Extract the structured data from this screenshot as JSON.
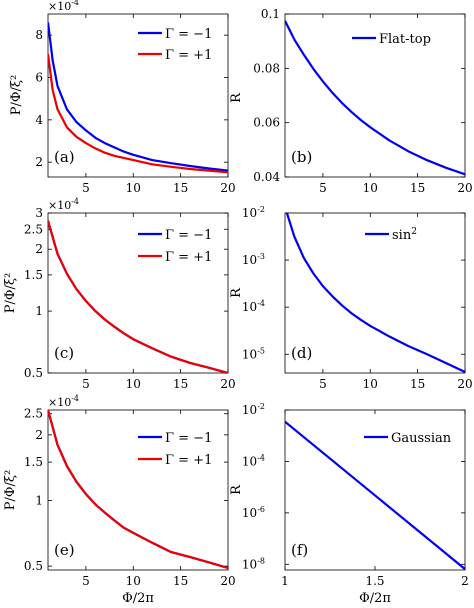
{
  "colors": {
    "blue": "#0000ee",
    "red": "#ee0000",
    "axis": "#000000"
  },
  "chart_data": [
    {
      "panel_label": "(a)",
      "type": "line",
      "ylabel": "P/Φ/ξ²",
      "xlabel": "",
      "exponent": "×10",
      "exponent_power": "-4",
      "xlim": [
        1,
        20
      ],
      "ylim": [
        1.3,
        9.0
      ],
      "yscale": "linear",
      "xticks": [
        5,
        10,
        15,
        20
      ],
      "xtick_labels": [
        "5",
        "10",
        "15",
        "20"
      ],
      "yticks": [
        2,
        4,
        6,
        8
      ],
      "ytick_labels": [
        "2",
        "4",
        "6",
        "8"
      ],
      "legend": "top-right",
      "series": [
        {
          "name": "Γ = −1",
          "color": "#0000ee",
          "x": [
            1,
            1.5,
            2,
            3,
            4,
            5,
            6,
            7,
            8,
            9,
            10,
            12,
            14,
            16,
            18,
            20
          ],
          "y": [
            8.6,
            6.8,
            5.6,
            4.5,
            3.9,
            3.5,
            3.15,
            2.9,
            2.7,
            2.5,
            2.35,
            2.1,
            1.95,
            1.82,
            1.7,
            1.6
          ]
        },
        {
          "name": "Γ = +1",
          "color": "#ee0000",
          "x": [
            1,
            1.5,
            2,
            3,
            4,
            5,
            6,
            7,
            8,
            9,
            10,
            12,
            14,
            16,
            18,
            20
          ],
          "y": [
            7.1,
            5.4,
            4.5,
            3.65,
            3.2,
            2.9,
            2.65,
            2.45,
            2.3,
            2.2,
            2.1,
            1.9,
            1.78,
            1.68,
            1.6,
            1.52
          ]
        }
      ]
    },
    {
      "panel_label": "(b)",
      "type": "line",
      "ylabel": "R",
      "xlabel": "",
      "xlim": [
        1,
        20
      ],
      "ylim": [
        0.04,
        0.1
      ],
      "yscale": "linear",
      "xticks": [
        5,
        10,
        15,
        20
      ],
      "xtick_labels": [
        "5",
        "10",
        "15",
        "20"
      ],
      "yticks": [
        0.04,
        0.06,
        0.08,
        0.1
      ],
      "ytick_labels": [
        "0.04",
        "0.06",
        "0.08",
        "0.1"
      ],
      "legend": "top-right",
      "series": [
        {
          "name": "Flat-top",
          "color": "#0000ee",
          "x": [
            1,
            2,
            3,
            4,
            5,
            6,
            7,
            8,
            9,
            10,
            12,
            14,
            16,
            18,
            20
          ],
          "y": [
            0.0975,
            0.0905,
            0.085,
            0.0798,
            0.0752,
            0.071,
            0.0673,
            0.064,
            0.061,
            0.0583,
            0.0535,
            0.0495,
            0.0462,
            0.0434,
            0.041
          ]
        }
      ]
    },
    {
      "panel_label": "(c)",
      "type": "line",
      "ylabel": "P/Φ/ξ²",
      "xlabel": "",
      "exponent": "×10",
      "exponent_power": "-4",
      "xlim": [
        1,
        20
      ],
      "ylim": [
        0.5,
        3.0
      ],
      "yscale": "log",
      "xticks": [
        5,
        10,
        15,
        20
      ],
      "xtick_labels": [
        "5",
        "10",
        "15",
        "20"
      ],
      "yticks": [
        0.5,
        1,
        1.5,
        2,
        2.5,
        3
      ],
      "ytick_labels": [
        "0.5",
        "1",
        "1.5",
        "2",
        "2.5",
        "3"
      ],
      "legend": "top-right",
      "series": [
        {
          "name": "Γ = −1",
          "color": "#0000ee",
          "x": [
            1,
            2,
            3,
            4,
            5,
            6,
            7,
            8,
            9,
            10,
            12,
            14,
            16,
            18,
            20
          ],
          "y": [
            2.75,
            1.9,
            1.52,
            1.28,
            1.12,
            1.0,
            0.91,
            0.84,
            0.78,
            0.73,
            0.66,
            0.6,
            0.56,
            0.53,
            0.5
          ]
        },
        {
          "name": "Γ = +1",
          "color": "#ee0000",
          "x": [
            1,
            2,
            3,
            4,
            5,
            6,
            7,
            8,
            9,
            10,
            12,
            14,
            16,
            18,
            20
          ],
          "y": [
            2.75,
            1.9,
            1.52,
            1.28,
            1.12,
            1.0,
            0.91,
            0.84,
            0.78,
            0.73,
            0.66,
            0.6,
            0.56,
            0.53,
            0.5
          ]
        }
      ]
    },
    {
      "panel_label": "(d)",
      "type": "line",
      "ylabel": "R",
      "xlabel": "",
      "xlim": [
        1,
        20
      ],
      "ylim": [
        4e-06,
        0.01
      ],
      "yscale": "log",
      "xticks": [
        5,
        10,
        15,
        20
      ],
      "xtick_labels": [
        "5",
        "10",
        "15",
        "20"
      ],
      "yticks": [
        1e-05,
        0.0001,
        0.001,
        0.01
      ],
      "ytick_bases": [
        "10",
        "10",
        "10",
        "10"
      ],
      "ytick_powers": [
        "-5",
        "-4",
        "-3",
        "-2"
      ],
      "legend": "top-right",
      "legend_name": "sin",
      "legend_power": "2",
      "series": [
        {
          "name": "sin²",
          "color": "#0000ee",
          "x": [
            1.2,
            2,
            3,
            4,
            5,
            6,
            7,
            8,
            9,
            10,
            12,
            14,
            16,
            18,
            20
          ],
          "y": [
            0.01,
            0.0031,
            0.0011,
            0.00052,
            0.00028,
            0.00017,
            0.00011,
            7.5e-05,
            5.4e-05,
            4e-05,
            2.4e-05,
            1.5e-05,
            1e-05,
            6.5e-06,
            4.2e-06
          ]
        }
      ]
    },
    {
      "panel_label": "(e)",
      "type": "line",
      "ylabel": "P/Φ/ξ²",
      "xlabel": "Φ/2π",
      "exponent": "×10",
      "exponent_power": "-4",
      "xlim": [
        1,
        20
      ],
      "ylim": [
        0.48,
        2.6
      ],
      "yscale": "log",
      "xticks": [
        5,
        10,
        15,
        20
      ],
      "xtick_labels": [
        "5",
        "10",
        "15",
        "20"
      ],
      "yticks": [
        0.5,
        1,
        1.5,
        2,
        2.5
      ],
      "ytick_labels": [
        "0.5",
        "1",
        "1.5",
        "2",
        "2.5"
      ],
      "legend": "top-right",
      "series": [
        {
          "name": "Γ = −1",
          "color": "#0000ee",
          "x": [
            1,
            2,
            3,
            4,
            5,
            6,
            7,
            8,
            9,
            10,
            12,
            14,
            16,
            18,
            20
          ],
          "y": [
            2.6,
            1.8,
            1.44,
            1.22,
            1.07,
            0.96,
            0.88,
            0.81,
            0.75,
            0.71,
            0.64,
            0.58,
            0.55,
            0.52,
            0.49
          ]
        },
        {
          "name": "Γ = +1",
          "color": "#ee0000",
          "x": [
            1,
            2,
            3,
            4,
            5,
            6,
            7,
            8,
            9,
            10,
            12,
            14,
            16,
            18,
            20
          ],
          "y": [
            2.6,
            1.8,
            1.44,
            1.22,
            1.07,
            0.96,
            0.88,
            0.81,
            0.75,
            0.71,
            0.64,
            0.58,
            0.55,
            0.52,
            0.49
          ]
        }
      ]
    },
    {
      "panel_label": "(f)",
      "type": "line",
      "ylabel": "R",
      "xlabel": "Φ/2π",
      "xlim": [
        1,
        2
      ],
      "ylim": [
        6e-09,
        0.01
      ],
      "yscale": "log",
      "xticks": [
        1,
        1.5,
        2
      ],
      "xtick_labels": [
        "1",
        "1.5",
        "2"
      ],
      "yticks": [
        1e-08,
        1e-06,
        0.0001,
        0.01
      ],
      "ytick_bases": [
        "10",
        "10",
        "10",
        "10"
      ],
      "ytick_powers": [
        "-8",
        "-6",
        "-4",
        "-2"
      ],
      "legend": "top-right",
      "series": [
        {
          "name": "Gaussian",
          "color": "#0000ee",
          "x": [
            1,
            2
          ],
          "y": [
            0.0035,
            6.5e-09
          ]
        }
      ]
    }
  ]
}
